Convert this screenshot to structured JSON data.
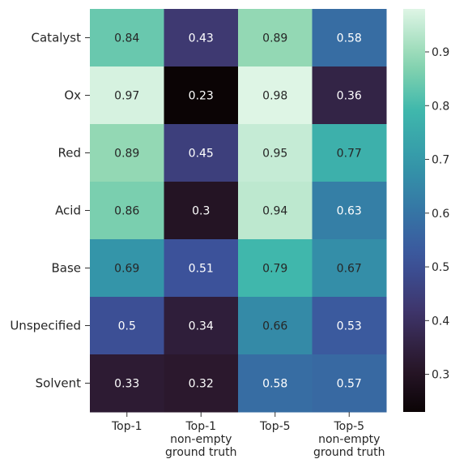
{
  "chart_data": {
    "type": "heatmap",
    "title": "",
    "xlabel": "",
    "ylabel": "",
    "rows": [
      "Catalyst",
      "Ox",
      "Red",
      "Acid",
      "Base",
      "Unspecified",
      "Solvent"
    ],
    "columns": [
      [
        "Top-1"
      ],
      [
        "Top-1",
        "non-empty",
        "ground truth"
      ],
      [
        "Top-5"
      ],
      [
        "Top-5",
        "non-empty",
        "ground truth"
      ]
    ],
    "values": [
      [
        0.84,
        0.43,
        0.89,
        0.58
      ],
      [
        0.97,
        0.23,
        0.98,
        0.36
      ],
      [
        0.89,
        0.45,
        0.95,
        0.77
      ],
      [
        0.86,
        0.3,
        0.94,
        0.63
      ],
      [
        0.69,
        0.51,
        0.79,
        0.67
      ],
      [
        0.5,
        0.34,
        0.66,
        0.53
      ],
      [
        0.33,
        0.32,
        0.58,
        0.57
      ]
    ],
    "value_labels": [
      [
        "0.84",
        "0.43",
        "0.89",
        "0.58"
      ],
      [
        "0.97",
        "0.23",
        "0.98",
        "0.36"
      ],
      [
        "0.89",
        "0.45",
        "0.95",
        "0.77"
      ],
      [
        "0.86",
        "0.3",
        "0.94",
        "0.63"
      ],
      [
        "0.69",
        "0.51",
        "0.79",
        "0.67"
      ],
      [
        "0.5",
        "0.34",
        "0.66",
        "0.53"
      ],
      [
        "0.33",
        "0.32",
        "0.58",
        "0.57"
      ]
    ],
    "colormap": "mako",
    "vmin": 0.23,
    "vmax": 0.98,
    "colorbar": {
      "ticks": [
        0.3,
        0.4,
        0.5,
        0.6,
        0.7,
        0.8,
        0.9
      ],
      "tick_labels": [
        "0.3",
        "0.4",
        "0.5",
        "0.6",
        "0.7",
        "0.8",
        "0.9"
      ],
      "position": "right"
    },
    "grid": false
  }
}
